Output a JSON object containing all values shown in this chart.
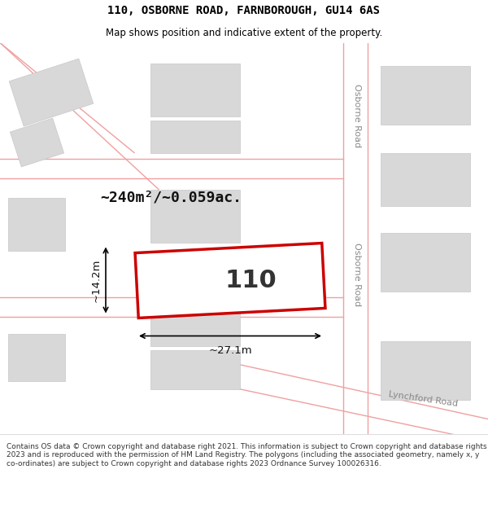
{
  "title": "110, OSBORNE ROAD, FARNBOROUGH, GU14 6AS",
  "subtitle": "Map shows position and indicative extent of the property.",
  "footer": "Contains OS data © Crown copyright and database right 2021. This information is subject to Crown copyright and database rights 2023 and is reproduced with the permission of HM Land Registry. The polygons (including the associated geometry, namely x, y co-ordinates) are subject to Crown copyright and database rights 2023 Ordnance Survey 100026316.",
  "background_color": "#ffffff",
  "area_label": "~240m²/~0.059ac.",
  "property_number": "110",
  "width_label": "~27.1m",
  "height_label": "~14.2m",
  "road_label_osborne_top": "Osborne Road",
  "road_label_osborne_bot": "Osborne Road",
  "road_label_lynchford": "Lynchford Road",
  "red_color": "#cc0000",
  "road_line_color": "#f0a0a0",
  "building_face": "#d8d8d8",
  "building_edge": "#c8c8c8",
  "road_stripe_color": "#e8e8e8",
  "title_fontsize": 10,
  "subtitle_fontsize": 8.5,
  "footer_fontsize": 6.5
}
